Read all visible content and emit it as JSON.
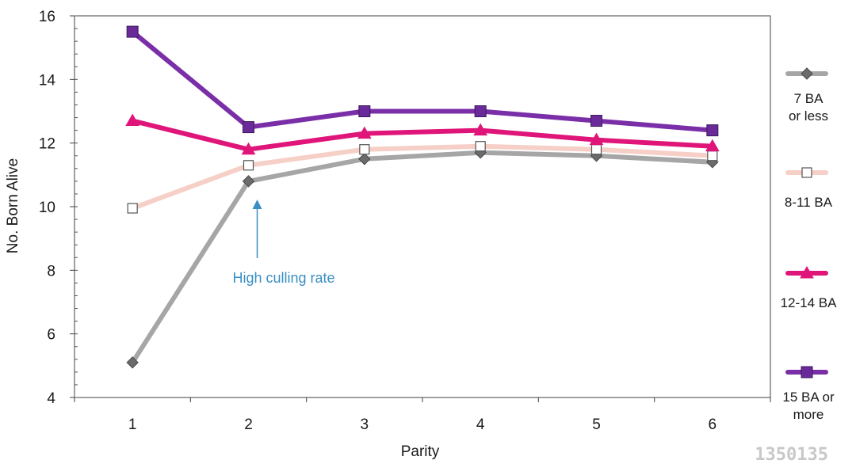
{
  "chart_data": {
    "type": "line",
    "title": "",
    "xlabel": "Parity",
    "ylabel": "No. Born Alive",
    "x": [
      1,
      2,
      3,
      4,
      5,
      6
    ],
    "xticks": [
      "1",
      "2",
      "3",
      "4",
      "5",
      "6"
    ],
    "ylim": [
      4,
      16
    ],
    "yticks": [
      "4",
      "6",
      "8",
      "10",
      "12",
      "14",
      "16"
    ],
    "grid": false,
    "legend_position": "right",
    "series": [
      {
        "name": "7 BA or less",
        "legend_lines": [
          "7 BA",
          "or less"
        ],
        "color": "#a6a6a6",
        "marker": "diamond",
        "marker_fill": "#6b6b6b",
        "values": [
          5.1,
          10.8,
          11.5,
          11.7,
          11.6,
          11.4
        ]
      },
      {
        "name": "8-11 BA",
        "legend_lines": [
          "8-11 BA"
        ],
        "color": "#f6cfc7",
        "marker": "square-open",
        "marker_fill": "#ffffff",
        "values": [
          9.95,
          11.3,
          11.8,
          11.9,
          11.8,
          11.6
        ]
      },
      {
        "name": "12-14 BA",
        "legend_lines": [
          "12-14 BA"
        ],
        "color": "#e0157a",
        "marker": "triangle",
        "marker_fill": "#e0157a",
        "values": [
          12.7,
          11.8,
          12.3,
          12.4,
          12.1,
          11.9
        ]
      },
      {
        "name": "15 BA or more",
        "legend_lines": [
          "15 BA or",
          "more"
        ],
        "color": "#7a2fa8",
        "marker": "square",
        "marker_fill": "#6a2a9a",
        "values": [
          15.5,
          12.5,
          13.0,
          13.0,
          12.7,
          12.4
        ]
      }
    ],
    "annotations": [
      {
        "text": "High culling rate",
        "x": 2,
        "y": 10.2,
        "color": "#3a8fc4"
      }
    ]
  },
  "watermark": "1350135"
}
